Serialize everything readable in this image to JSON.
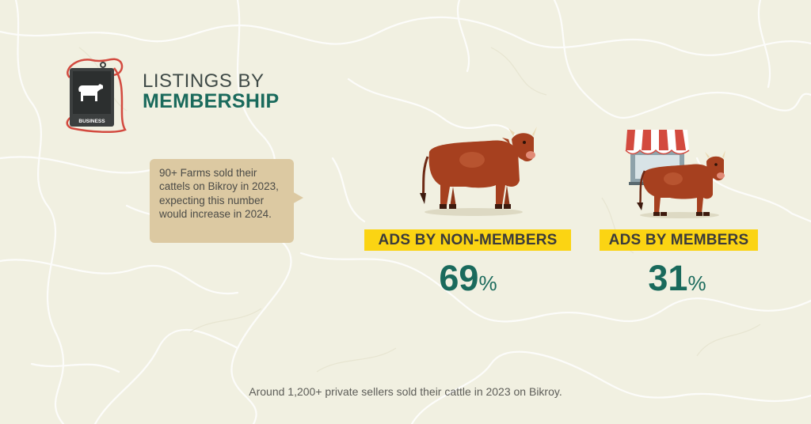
{
  "header": {
    "title_line1": "LISTINGS BY",
    "title_line2": "MEMBERSHIP",
    "logo_tag_text": "BUSINESS",
    "logo_icon": "cow-tag-icon"
  },
  "note": {
    "text": "90+ Farms sold their cattels on Bikroy in 2023, expecting this number would increase in 2024."
  },
  "stats": [
    {
      "label": "ADS BY NON-MEMBERS",
      "value": "69",
      "unit": "%",
      "icon": "cow-icon"
    },
    {
      "label": "ADS BY MEMBERS",
      "value": "31",
      "unit": "%",
      "icon": "shop-and-cow-icon"
    }
  ],
  "footnote": "Around 1,200+ private sellers sold their cattle in 2023 on Bikroy.",
  "colors": {
    "background": "#f1f0e1",
    "accent_green": "#1a6a5c",
    "tag_yellow": "#fbd413",
    "bubble": "#dcc9a2",
    "cow_brown": "#a6401f"
  }
}
